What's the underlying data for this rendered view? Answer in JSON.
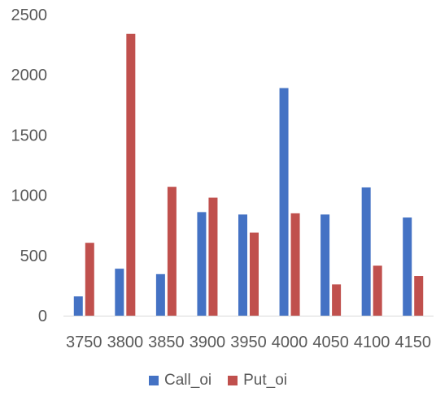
{
  "chart_data": {
    "type": "bar",
    "title": "",
    "xlabel": "",
    "ylabel": "",
    "categories": [
      "3750",
      "3800",
      "3850",
      "3900",
      "3950",
      "4000",
      "4050",
      "4100",
      "4150"
    ],
    "series": [
      {
        "name": "Call_oi",
        "color": "#4472C4",
        "values": [
          160,
          390,
          345,
          860,
          840,
          1890,
          840,
          1065,
          815
        ]
      },
      {
        "name": "Put_oi",
        "color": "#C0504D",
        "values": [
          605,
          2340,
          1070,
          980,
          690,
          850,
          260,
          415,
          330
        ]
      }
    ],
    "ylim": [
      0,
      2500
    ],
    "yticks": [
      "0",
      "500",
      "1000",
      "1500",
      "2000",
      "2500"
    ],
    "grid": false,
    "legend_position": "bottom"
  }
}
